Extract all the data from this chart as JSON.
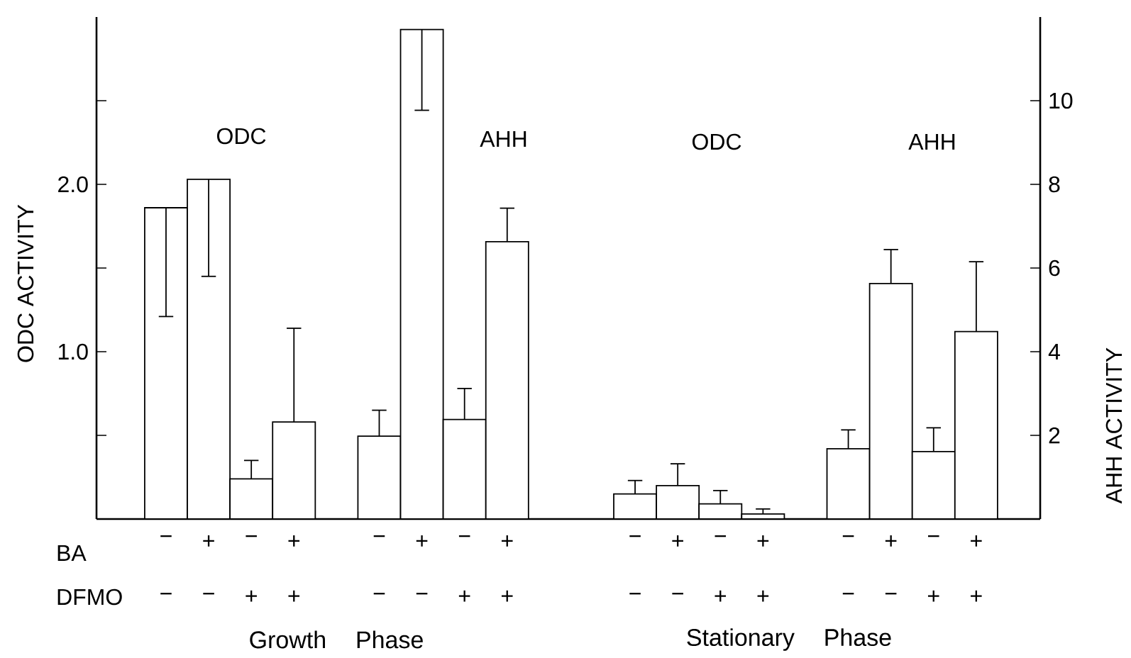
{
  "chart_data": {
    "type": "bar",
    "categories": [
      "−",
      "+",
      "−",
      "+",
      "−",
      "+",
      "−",
      "+",
      "−",
      "+",
      "−",
      "+",
      "−",
      "+",
      "−",
      "+"
    ],
    "ylabel": "ODC ACTIVITY",
    "y2label": "AHH ACTIVITY",
    "ylim": [
      0,
      3
    ],
    "yticks": [
      {
        "value": 0.5,
        "label": null
      },
      {
        "value": 1,
        "label": "1.0"
      },
      {
        "value": 1.5,
        "label": null
      },
      {
        "value": 2,
        "label": "2.0"
      },
      {
        "value": 2.5,
        "label": null
      }
    ],
    "y2lim": [
      0,
      12
    ],
    "y2ticks": [
      2,
      4,
      6,
      8,
      10
    ],
    "series": [
      {
        "color": "#ffffff",
        "values": [
          1.86,
          2.03,
          0.24,
          0.58,
          null,
          null,
          null,
          null,
          0.15,
          0.2,
          0.09,
          0.03,
          null,
          null,
          null,
          null
        ],
        "errors": [
          [
            1.21,
            1.86
          ],
          [
            1.45,
            2.03
          ],
          [
            0.24,
            0.35
          ],
          [
            0.58,
            1.14
          ],
          null,
          null,
          null,
          null,
          [
            0.15,
            0.23
          ],
          [
            0.2,
            0.33
          ],
          [
            0.09,
            0.17
          ],
          [
            0.03,
            0.06
          ],
          null,
          null,
          null,
          null
        ]
      },
      {
        "color": "#ffffff",
        "axis": "y2",
        "values": [
          null,
          null,
          null,
          null,
          1.98,
          11.7,
          2.38,
          6.63,
          null,
          null,
          null,
          null,
          1.68,
          5.63,
          1.61,
          4.48
        ],
        "errors": [
          null,
          null,
          null,
          null,
          [
            1.98,
            2.6
          ],
          [
            9.77,
            11.7
          ],
          [
            2.38,
            3.12
          ],
          [
            6.63,
            7.43
          ],
          null,
          null,
          null,
          null,
          [
            1.68,
            2.13
          ],
          [
            5.63,
            6.44
          ],
          [
            1.61,
            2.18
          ],
          [
            4.48,
            6.15
          ]
        ]
      }
    ],
    "annotations": [
      "BA",
      "DFMO",
      "−",
      "−",
      "+",
      "+",
      "−",
      "−",
      "+",
      "+",
      "−",
      "−",
      "+",
      "+",
      "−",
      "−",
      "+",
      "+",
      "Growth Phase",
      "Stationary Phase",
      "ODC",
      "AHH",
      "ODC",
      "AHH"
    ]
  }
}
